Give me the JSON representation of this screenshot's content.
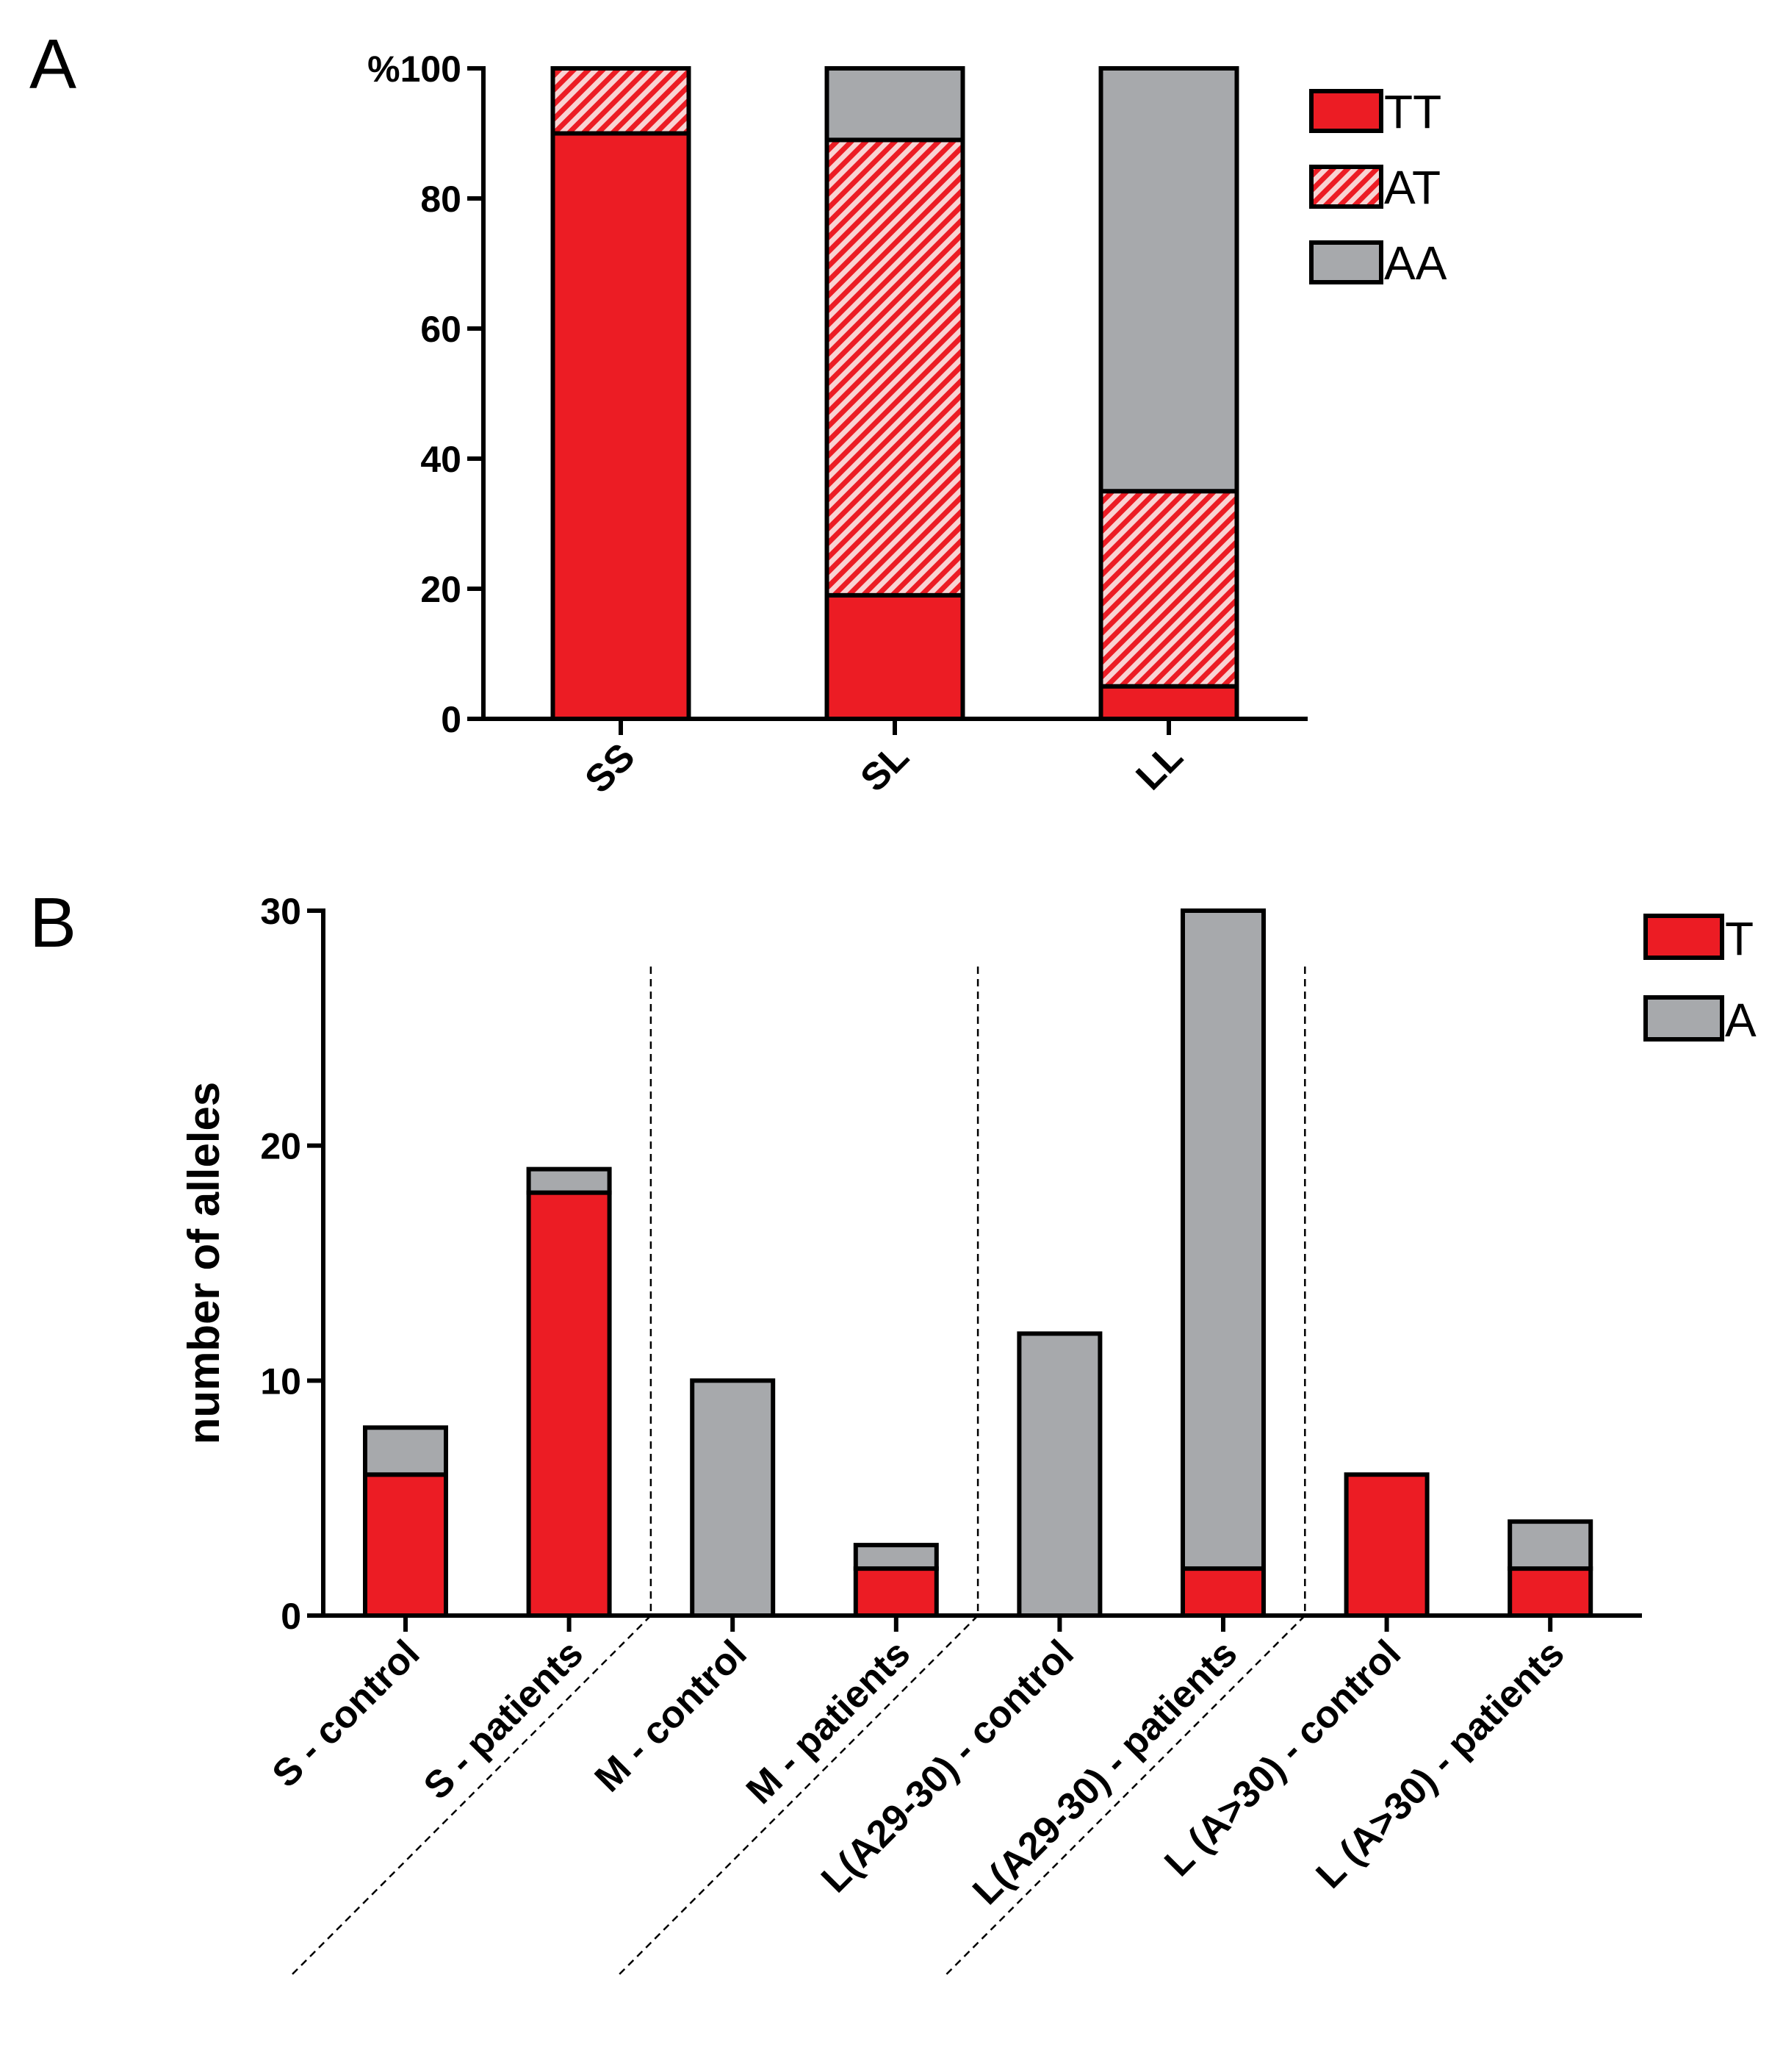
{
  "chart_data": [
    {
      "panel": "A",
      "type": "bar",
      "stacked": true,
      "categories": [
        "SS",
        "SL",
        "LL"
      ],
      "series": [
        {
          "name": "TT",
          "values": [
            90,
            19,
            5
          ],
          "color": "#ec1c24",
          "pattern": "solid"
        },
        {
          "name": "AT",
          "values": [
            10,
            70,
            30
          ],
          "color": "#ec1c24",
          "pattern": "hatch"
        },
        {
          "name": "AA",
          "values": [
            0,
            11,
            65
          ],
          "color": "#a7a9ac",
          "pattern": "solid"
        }
      ],
      "ylim": [
        0,
        100
      ],
      "yticks": [
        0,
        20,
        40,
        60,
        80,
        100
      ],
      "ytick_labels": [
        "0",
        "20",
        "40",
        "60",
        "80",
        "%100"
      ],
      "xlabel": "",
      "ylabel": "",
      "legend": "top-right"
    },
    {
      "panel": "B",
      "type": "bar",
      "stacked": true,
      "categories": [
        "S - control",
        "S - patients",
        "M - control",
        "M - patients",
        "L(A29-30) - control",
        "L(A29-30) - patients",
        "L (A>30) -  control",
        "L (A>30) -  patients"
      ],
      "series": [
        {
          "name": "T",
          "values": [
            6,
            18,
            0,
            2,
            0,
            2,
            6,
            2
          ],
          "color": "#ec1c24",
          "pattern": "solid"
        },
        {
          "name": "A",
          "values": [
            2,
            1,
            10,
            1,
            12,
            28,
            0,
            2
          ],
          "color": "#a7a9ac",
          "pattern": "solid"
        }
      ],
      "ylim": [
        0,
        30
      ],
      "yticks": [
        0,
        10,
        20,
        30
      ],
      "ytick_labels": [
        "0",
        "10",
        "20",
        "30"
      ],
      "xlabel": "",
      "ylabel": "number of alleles",
      "legend": "top-right",
      "group_dividers_after": [
        1,
        3,
        5
      ]
    }
  ],
  "panel_labels": [
    "A",
    "B"
  ]
}
